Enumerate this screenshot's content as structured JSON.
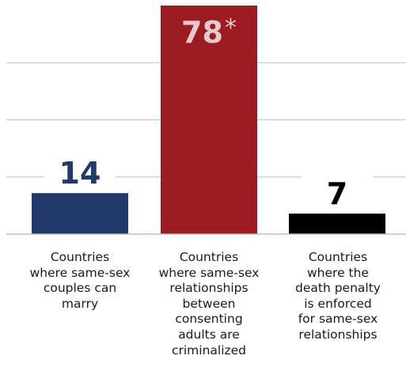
{
  "chart_data": {
    "type": "bar",
    "categories": [
      "Countries where same-sex couples can marry",
      "Countries where same-sex relationships between consenting adults are criminalized",
      "Countries where the death penalty is enforced for same-sex relationships"
    ],
    "category_lines": [
      [
        "Countries",
        "where same-sex",
        "couples can",
        "marry"
      ],
      [
        "Countries",
        "where same-sex",
        "relationships",
        "between",
        "consenting",
        "adults are",
        "criminalized"
      ],
      [
        "Countries",
        "where the",
        "death penalty",
        "is enforced",
        "for same-sex",
        "relationships"
      ]
    ],
    "values": [
      14,
      78,
      7
    ],
    "value_labels": [
      "14",
      "78",
      "7"
    ],
    "value_label_suffix": [
      "",
      "*",
      ""
    ],
    "colors": [
      "#1f3a6b",
      "#9b1c22",
      "#000000"
    ],
    "value_label_colors": [
      "#1f3a6b",
      "#e9c9c9",
      "#000000"
    ],
    "ylim": [
      0,
      78
    ],
    "grid": true,
    "gridline_values": [
      19.5,
      39,
      58.5
    ],
    "title": "",
    "xlabel": "",
    "ylabel": ""
  }
}
